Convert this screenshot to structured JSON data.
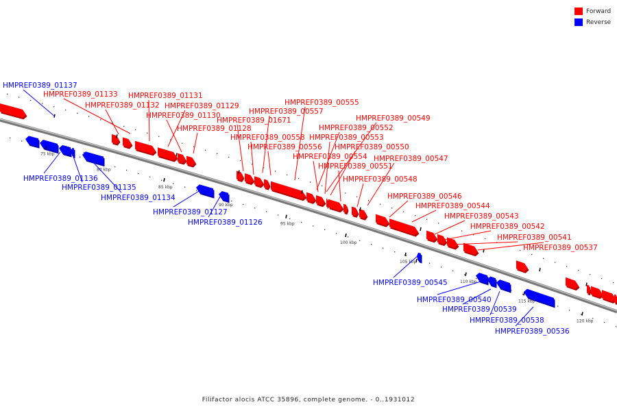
{
  "legend": [
    {
      "label": "Forward",
      "color": "#ff0000"
    },
    {
      "label": "Reverse",
      "color": "#0000ff"
    }
  ],
  "caption": "Filifactor alocis ATCC 35896, complete genome. - 0..1931012",
  "ticks": [
    "75 kbp",
    "80 kbp",
    "85 kbp",
    "90 kbp",
    "95 kbp",
    "100 kbp",
    "105 kbp",
    "110 kbp",
    "115 kbp",
    "120 kbp"
  ],
  "genes": [
    {
      "label": "HMPREF0389_01137",
      "strand": "reverse"
    },
    {
      "label": "HMPREF0389_01133",
      "strand": "forward"
    },
    {
      "label": "HMPREF0389_01132",
      "strand": "forward"
    },
    {
      "label": "HMPREF0389_01131",
      "strand": "forward"
    },
    {
      "label": "HMPREF0389_01129",
      "strand": "forward"
    },
    {
      "label": "HMPREF0389_01130",
      "strand": "forward"
    },
    {
      "label": "HMPREF0389_01128",
      "strand": "forward"
    },
    {
      "label": "HMPREF0389_01136",
      "strand": "reverse"
    },
    {
      "label": "HMPREF0389_01135",
      "strand": "reverse"
    },
    {
      "label": "HMPREF0389_01134",
      "strand": "reverse"
    },
    {
      "label": "HMPREF0389_01127",
      "strand": "reverse"
    },
    {
      "label": "HMPREF0389_01126",
      "strand": "reverse"
    },
    {
      "label": "HMPREF0389_00555",
      "strand": "forward"
    },
    {
      "label": "HMPREF0389_00557",
      "strand": "forward"
    },
    {
      "label": "HMPREF0389_01671",
      "strand": "forward"
    },
    {
      "label": "HMPREF0389_00558",
      "strand": "forward"
    },
    {
      "label": "HMPREF0389_00556",
      "strand": "forward"
    },
    {
      "label": "HMPREF0389_00549",
      "strand": "forward"
    },
    {
      "label": "HMPREF0389_00552",
      "strand": "forward"
    },
    {
      "label": "HMPREF0389_00553",
      "strand": "forward"
    },
    {
      "label": "HMPREF0389_00550",
      "strand": "forward"
    },
    {
      "label": "HMPREF0389_00554",
      "strand": "forward"
    },
    {
      "label": "HMPREF0389_00551",
      "strand": "forward"
    },
    {
      "label": "HMPREF0389_00547",
      "strand": "forward"
    },
    {
      "label": "HMPREF0389_00548",
      "strand": "forward"
    },
    {
      "label": "HMPREF0389_00546",
      "strand": "forward"
    },
    {
      "label": "HMPREF0389_00544",
      "strand": "forward"
    },
    {
      "label": "HMPREF0389_00543",
      "strand": "forward"
    },
    {
      "label": "HMPREF0389_00542",
      "strand": "forward"
    },
    {
      "label": "HMPREF0389_00541",
      "strand": "forward"
    },
    {
      "label": "HMPREF0389_00537",
      "strand": "forward"
    },
    {
      "label": "HMPREF0389_00545",
      "strand": "reverse"
    },
    {
      "label": "HMPREF0389_00540",
      "strand": "reverse"
    },
    {
      "label": "HMPREF0389_00539",
      "strand": "reverse"
    },
    {
      "label": "HMPREF0389_00538",
      "strand": "reverse"
    },
    {
      "label": "HMPREF0389_00536",
      "strand": "reverse"
    }
  ]
}
